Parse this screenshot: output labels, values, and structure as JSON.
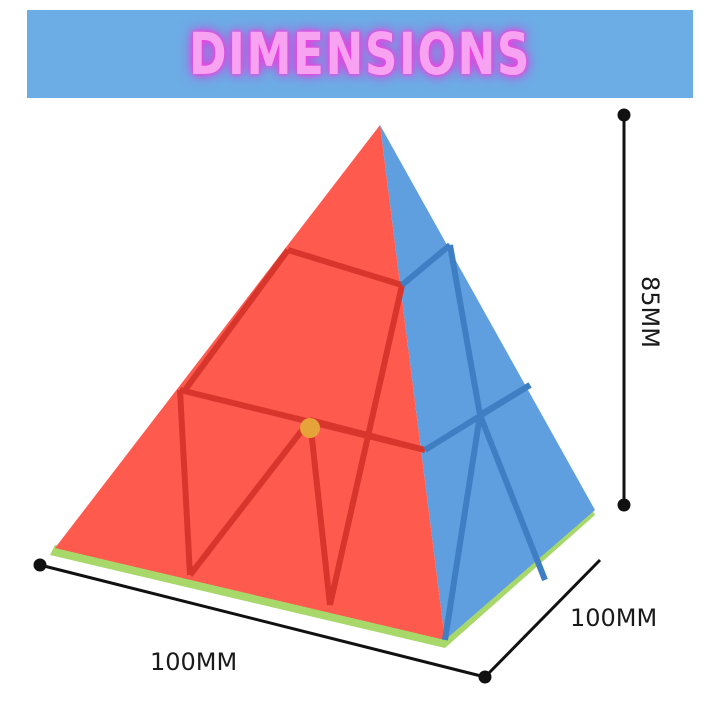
{
  "banner": {
    "title": "DIMENSIONS",
    "background_color": "#6cade6",
    "title_color": "#f7a3f2"
  },
  "dimensions": {
    "width_label": "100MM",
    "depth_label": "100MM",
    "height_label": "85MM"
  },
  "product": {
    "name_icon": "pyraminx-puzzle-icon",
    "face_colors": {
      "front": "#ff5a4e",
      "side": "#5f9fe0",
      "base": "#a8d86a"
    }
  }
}
